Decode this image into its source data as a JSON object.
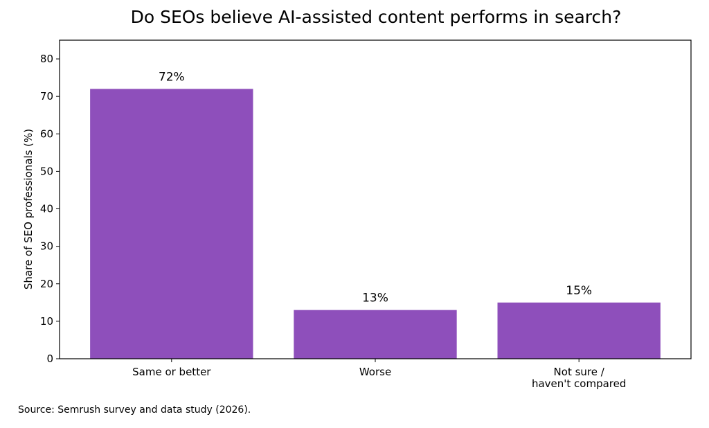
{
  "chart_data": {
    "type": "bar",
    "title": "Do SEOs believe AI-assisted content performs in search?",
    "xlabel": "",
    "ylabel": "Share of SEO professionals (%)",
    "categories": [
      [
        "Same or better"
      ],
      [
        "Worse"
      ],
      [
        "Not sure /",
        "haven't compared"
      ]
    ],
    "values": [
      72,
      13,
      15
    ],
    "value_labels": [
      "72%",
      "13%",
      "15%"
    ],
    "ylim": [
      0,
      85
    ],
    "yticks": [
      0,
      10,
      20,
      30,
      40,
      50,
      60,
      70,
      80
    ],
    "bar_color": "#8e4fbb",
    "grid": false,
    "legend": "none"
  },
  "source_note": "Source: Semrush survey and data study (2026)."
}
